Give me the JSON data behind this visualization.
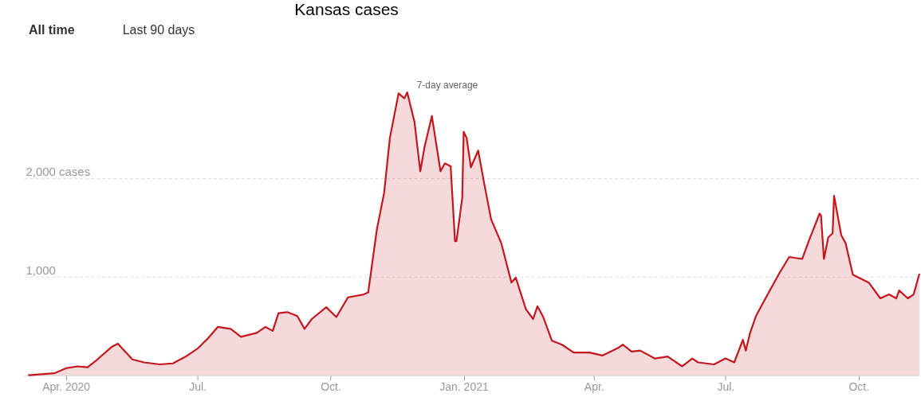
{
  "chart_data": {
    "type": "area",
    "title": "Kansas cases",
    "x": [
      "2020-03-06",
      "2020-03-24",
      "2020-04-01",
      "2020-04-09",
      "2020-04-16",
      "2020-04-22",
      "2020-05-03",
      "2020-05-07",
      "2020-05-17",
      "2020-05-25",
      "2020-06-05",
      "2020-06-14",
      "2020-06-23",
      "2020-07-01",
      "2020-07-08",
      "2020-07-15",
      "2020-07-24",
      "2020-07-31",
      "2020-08-11",
      "2020-08-17",
      "2020-08-22",
      "2020-08-26",
      "2020-09-01",
      "2020-09-08",
      "2020-09-13",
      "2020-09-18",
      "2020-09-28",
      "2020-10-05",
      "2020-10-13",
      "2020-10-24",
      "2020-10-27",
      "2020-10-30",
      "2020-11-02",
      "2020-11-07",
      "2020-11-11",
      "2020-11-17",
      "2020-11-21",
      "2020-11-23",
      "2020-11-28",
      "2020-12-02",
      "2020-12-05",
      "2020-12-10",
      "2020-12-16",
      "2020-12-19",
      "2020-12-23",
      "2020-12-26",
      "2020-12-27",
      "2020-12-31",
      "2021-01-01",
      "2021-01-03",
      "2021-01-06",
      "2021-01-11",
      "2021-01-15",
      "2021-01-20",
      "2021-01-27",
      "2021-02-03",
      "2021-02-06",
      "2021-02-13",
      "2021-02-18",
      "2021-02-21",
      "2021-02-25",
      "2021-03-03",
      "2021-03-10",
      "2021-03-18",
      "2021-03-29",
      "2021-04-07",
      "2021-04-18",
      "2021-04-21",
      "2021-04-27",
      "2021-05-03",
      "2021-05-13",
      "2021-05-22",
      "2021-06-01",
      "2021-06-08",
      "2021-06-12",
      "2021-06-23",
      "2021-07-01",
      "2021-07-07",
      "2021-07-13",
      "2021-07-15",
      "2021-07-18",
      "2021-07-22",
      "2021-07-29",
      "2021-08-07",
      "2021-08-14",
      "2021-08-23",
      "2021-08-28",
      "2021-09-04",
      "2021-09-05",
      "2021-09-07",
      "2021-09-10",
      "2021-09-13",
      "2021-09-14",
      "2021-09-19",
      "2021-09-22",
      "2021-09-27",
      "2021-10-08",
      "2021-10-16",
      "2021-10-22",
      "2021-10-27",
      "2021-10-29",
      "2021-11-04",
      "2021-11-08",
      "2021-11-12"
    ],
    "series": [
      {
        "color": "#c4161c",
        "values": [
          0,
          20,
          70,
          90,
          80,
          150,
          290,
          320,
          160,
          130,
          110,
          120,
          190,
          270,
          370,
          490,
          470,
          390,
          430,
          490,
          450,
          630,
          640,
          600,
          470,
          570,
          690,
          590,
          790,
          820,
          840,
          1160,
          1480,
          1850,
          2410,
          2860,
          2810,
          2870,
          2570,
          2070,
          2320,
          2630,
          2070,
          2150,
          2120,
          1360,
          1360,
          1800,
          2470,
          2410,
          2110,
          2280,
          1960,
          1580,
          1340,
          940,
          990,
          670,
          570,
          700,
          590,
          350,
          310,
          230,
          230,
          200,
          280,
          310,
          240,
          250,
          170,
          190,
          90,
          170,
          130,
          110,
          170,
          130,
          360,
          250,
          430,
          600,
          790,
          1030,
          1200,
          1180,
          1380,
          1640,
          1620,
          1180,
          1400,
          1440,
          1820,
          1420,
          1340,
          1020,
          940,
          780,
          820,
          780,
          860,
          780,
          820,
          1030
        ]
      }
    ],
    "xlim": [
      "2020-03-03",
      "2021-11-12"
    ],
    "xticks": [
      {
        "value": "2020-04-01",
        "label": "Apr. 2020"
      },
      {
        "value": "2020-07-01",
        "label": "Jul."
      },
      {
        "value": "2020-10-01",
        "label": "Oct."
      },
      {
        "value": "2021-01-01",
        "label": "Jan. 2021"
      },
      {
        "value": "2021-04-01",
        "label": "Apr."
      },
      {
        "value": "2021-07-01",
        "label": "Jul."
      },
      {
        "value": "2021-10-01",
        "label": "Oct."
      }
    ],
    "ylim": [
      0,
      2950
    ],
    "yticks": [
      {
        "value": 1000,
        "label": "1,000"
      },
      {
        "value": 2000,
        "label": "2,000 cases"
      }
    ],
    "grid": "y",
    "annotations": [
      {
        "text": "7-day average",
        "x": "2020-11-23",
        "y": 2870
      },
      "All time",
      "Last 90 days"
    ]
  }
}
